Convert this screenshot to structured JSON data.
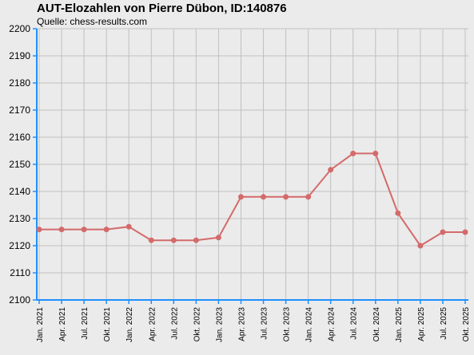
{
  "title": "AUT-Elozahlen von Pierre Dübon, ID:140876",
  "subtitle": "Quelle: chess-results.com",
  "colors": {
    "line": "#d46a6a",
    "axis": "#1e90ff",
    "grid": "#c0c0c0",
    "background": "#ebebeb"
  },
  "chart_data": {
    "type": "line",
    "title": "AUT-Elozahlen von Pierre Dübon, ID:140876",
    "subtitle": "Quelle: chess-results.com",
    "xlabel": "",
    "ylabel": "",
    "ylim": [
      2100,
      2200
    ],
    "yticks": [
      2100,
      2110,
      2120,
      2130,
      2140,
      2150,
      2160,
      2170,
      2180,
      2190,
      2200
    ],
    "grid": true,
    "categories": [
      "Jan. 2021",
      "Apr. 2021",
      "Jul. 2021",
      "Okt. 2021",
      "Jan. 2022",
      "Apr. 2022",
      "Jul. 2022",
      "Okt. 2022",
      "Jan. 2023",
      "Apr. 2023",
      "Jul. 2023",
      "Okt. 2023",
      "Jan. 2024",
      "Apr. 2024",
      "Jul. 2024",
      "Okt. 2024",
      "Jan. 2025",
      "Apr. 2025",
      "Jul. 2025",
      "Okt. 2025"
    ],
    "series": [
      {
        "values": [
          2126,
          2126,
          2126,
          2126,
          2127,
          2122,
          2122,
          2122,
          2123,
          2138,
          2138,
          2138,
          2138,
          2148,
          2154,
          2154,
          2132,
          2120,
          2125,
          2125
        ]
      }
    ]
  }
}
